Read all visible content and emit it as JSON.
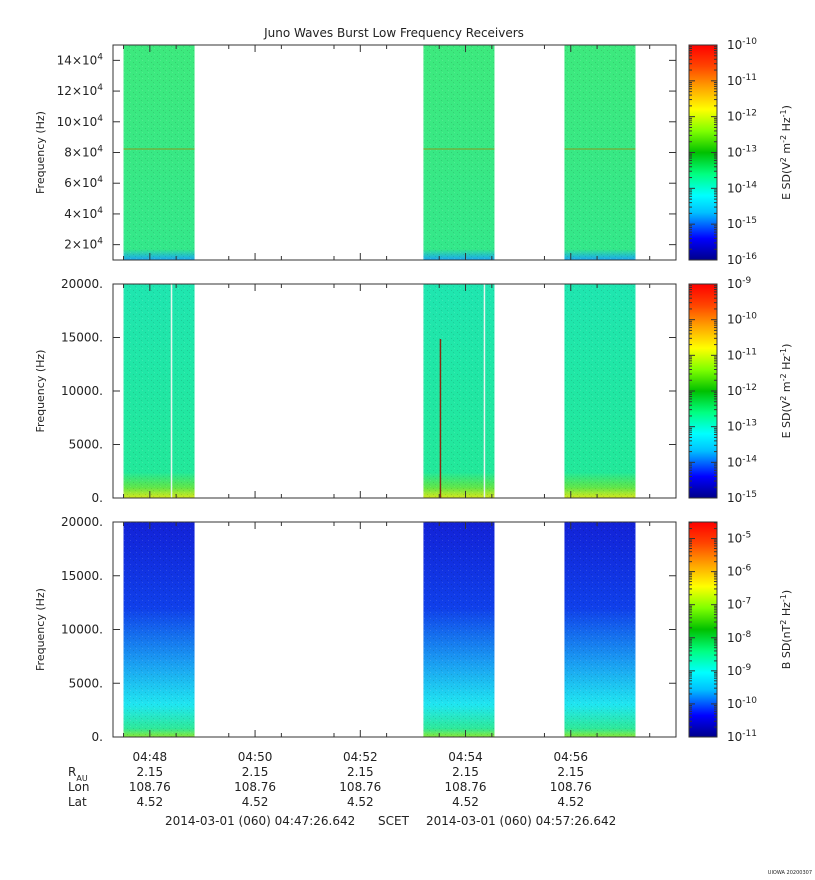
{
  "title": "Juno Waves Burst Low Frequency Receivers",
  "stamp": "UIOWA 20200307",
  "colors": {
    "data_blocks": [
      "#3ee87a",
      "#1fe6a3",
      "#1a2fe0"
    ],
    "scale": [
      "#00008b",
      "#0000ff",
      "#00bfff",
      "#00ffff",
      "#00ff80",
      "#00c000",
      "#80ff00",
      "#ffff00",
      "#ffa500",
      "#ff4500",
      "#ff0000"
    ]
  },
  "chart_data": [
    {
      "type": "heatmap",
      "ylabel": "Frequency (Hz)",
      "yticks": [
        {
          "mant": "2×10",
          "exp": "4",
          "value": 20000
        },
        {
          "mant": "4×10",
          "exp": "4",
          "value": 40000
        },
        {
          "mant": "6×10",
          "exp": "4",
          "value": 60000
        },
        {
          "mant": "8×10",
          "exp": "4",
          "value": 80000
        },
        {
          "mant": "10×10",
          "exp": "4",
          "value": 100000
        },
        {
          "mant": "12×10",
          "exp": "4",
          "value": 120000
        },
        {
          "mant": "14×10",
          "exp": "4",
          "value": 140000
        }
      ],
      "ylim": [
        10000,
        150000
      ],
      "colorbar": {
        "label_parts": [
          "E SD(V",
          "2",
          " m",
          "-2",
          " Hz",
          "-1",
          ")"
        ],
        "ticks": [
          {
            "base": "10",
            "exp": "-10",
            "value": -10
          },
          {
            "base": "10",
            "exp": "-11",
            "value": -11
          },
          {
            "base": "10",
            "exp": "-12",
            "value": -12
          },
          {
            "base": "10",
            "exp": "-13",
            "value": -13
          },
          {
            "base": "10",
            "exp": "-14",
            "value": -14
          },
          {
            "base": "10",
            "exp": "-15",
            "value": -15
          },
          {
            "base": "10",
            "exp": "-16",
            "value": -16
          }
        ],
        "range": [
          -16,
          -10
        ]
      }
    },
    {
      "type": "heatmap",
      "ylabel": "Frequency (Hz)",
      "yticks": [
        {
          "mant": "0.",
          "exp": "",
          "value": 0
        },
        {
          "mant": "5000.",
          "exp": "",
          "value": 5000
        },
        {
          "mant": "10000.",
          "exp": "",
          "value": 10000
        },
        {
          "mant": "15000.",
          "exp": "",
          "value": 15000
        },
        {
          "mant": "20000.",
          "exp": "",
          "value": 20000
        }
      ],
      "ylim": [
        0,
        20000
      ],
      "colorbar": {
        "label_parts": [
          "E SD(V",
          "2",
          " m",
          "-2",
          " Hz",
          "-1",
          ")"
        ],
        "ticks": [
          {
            "base": "10",
            "exp": "-9",
            "value": -9
          },
          {
            "base": "10",
            "exp": "-10",
            "value": -10
          },
          {
            "base": "10",
            "exp": "-11",
            "value": -11
          },
          {
            "base": "10",
            "exp": "-12",
            "value": -12
          },
          {
            "base": "10",
            "exp": "-13",
            "value": -13
          },
          {
            "base": "10",
            "exp": "-14",
            "value": -14
          },
          {
            "base": "10",
            "exp": "-15",
            "value": -15
          }
        ],
        "range": [
          -15,
          -9
        ]
      }
    },
    {
      "type": "heatmap",
      "ylabel": "Frequency (Hz)",
      "yticks": [
        {
          "mant": "0.",
          "exp": "",
          "value": 0
        },
        {
          "mant": "5000.",
          "exp": "",
          "value": 5000
        },
        {
          "mant": "10000.",
          "exp": "",
          "value": 10000
        },
        {
          "mant": "15000.",
          "exp": "",
          "value": 15000
        },
        {
          "mant": "20000.",
          "exp": "",
          "value": 20000
        }
      ],
      "ylim": [
        0,
        20000
      ],
      "colorbar": {
        "label_parts": [
          "B SD(nT",
          "2",
          " Hz",
          "-1",
          ")"
        ],
        "ticks": [
          {
            "base": "10",
            "exp": "-5",
            "value": -5
          },
          {
            "base": "10",
            "exp": "-6",
            "value": -6
          },
          {
            "base": "10",
            "exp": "-7",
            "value": -7
          },
          {
            "base": "10",
            "exp": "-8",
            "value": -8
          },
          {
            "base": "10",
            "exp": "-9",
            "value": -9
          },
          {
            "base": "10",
            "exp": "-10",
            "value": -10
          },
          {
            "base": "10",
            "exp": "-11",
            "value": -11
          }
        ],
        "range": [
          -11,
          -4.5
        ]
      }
    }
  ],
  "time_axis": {
    "range_min": [
      47.3,
      58.0
    ],
    "ticks": [
      {
        "label": "04:48",
        "min": 48
      },
      {
        "label": "04:50",
        "min": 50
      },
      {
        "label": "04:52",
        "min": 52
      },
      {
        "label": "04:54",
        "min": 54
      },
      {
        "label": "04:56",
        "min": 56
      }
    ],
    "bursts_min": [
      [
        47.5,
        48.85
      ],
      [
        53.2,
        54.55
      ],
      [
        55.88,
        57.23
      ]
    ]
  },
  "ephemeris": {
    "rows": [
      {
        "label": "R",
        "sub": "AU",
        "values": [
          "2.15",
          "2.15",
          "2.15",
          "2.15",
          "2.15"
        ]
      },
      {
        "label": "Lon",
        "sub": "",
        "values": [
          "108.76",
          "108.76",
          "108.76",
          "108.76",
          "108.76"
        ]
      },
      {
        "label": "Lat",
        "sub": "",
        "values": [
          "4.52",
          "4.52",
          "4.52",
          "4.52",
          "4.52"
        ]
      }
    ]
  },
  "footer": {
    "start": "2014-03-01 (060) 04:47:26.642",
    "scet": "SCET",
    "end": "2014-03-01 (060) 04:57:26.642"
  }
}
